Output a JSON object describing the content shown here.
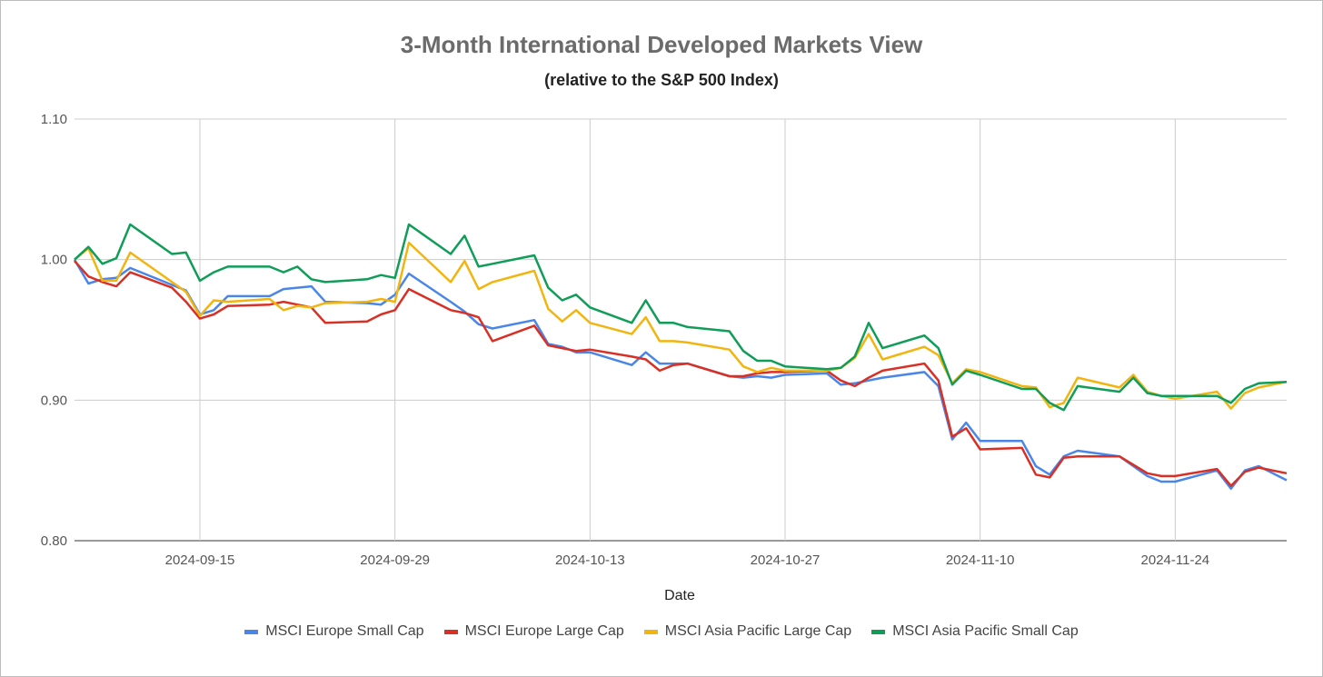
{
  "chart_data": {
    "type": "line",
    "title": "3-Month International Developed Markets View",
    "subtitle": "(relative to the S&P 500 Index)",
    "xlabel": "Date",
    "ylabel": "",
    "ylim": [
      0.8,
      1.1
    ],
    "y_ticks": [
      "0.80",
      "0.90",
      "1.00",
      "1.10"
    ],
    "x_range": [
      "2024-09-06",
      "2024-12-02"
    ],
    "x_ticks": [
      "2024-09-15",
      "2024-09-29",
      "2024-10-13",
      "2024-10-27",
      "2024-11-10",
      "2024-11-24"
    ],
    "grid": true,
    "legend_position": "bottom",
    "series": [
      {
        "name": "MSCI Europe Small Cap",
        "color": "#4a86e8",
        "points": [
          [
            "2024-09-06",
            1.0
          ],
          [
            "2024-09-07",
            0.983
          ],
          [
            "2024-09-08",
            0.986
          ],
          [
            "2024-09-09",
            0.987
          ],
          [
            "2024-09-10",
            0.994
          ],
          [
            "2024-09-13",
            0.982
          ],
          [
            "2024-09-14",
            0.978
          ],
          [
            "2024-09-15",
            0.961
          ],
          [
            "2024-09-16",
            0.964
          ],
          [
            "2024-09-17",
            0.974
          ],
          [
            "2024-09-20",
            0.974
          ],
          [
            "2024-09-21",
            0.979
          ],
          [
            "2024-09-22",
            0.98
          ],
          [
            "2024-09-23",
            0.981
          ],
          [
            "2024-09-24",
            0.97
          ],
          [
            "2024-09-27",
            0.969
          ],
          [
            "2024-09-28",
            0.968
          ],
          [
            "2024-09-29",
            0.975
          ],
          [
            "2024-09-30",
            0.99
          ],
          [
            "2024-10-03",
            0.97
          ],
          [
            "2024-10-04",
            0.963
          ],
          [
            "2024-10-05",
            0.954
          ],
          [
            "2024-10-06",
            0.951
          ],
          [
            "2024-10-09",
            0.957
          ],
          [
            "2024-10-10",
            0.94
          ],
          [
            "2024-10-11",
            0.938
          ],
          [
            "2024-10-12",
            0.934
          ],
          [
            "2024-10-13",
            0.934
          ],
          [
            "2024-10-16",
            0.925
          ],
          [
            "2024-10-17",
            0.934
          ],
          [
            "2024-10-18",
            0.926
          ],
          [
            "2024-10-19",
            0.926
          ],
          [
            "2024-10-20",
            0.926
          ],
          [
            "2024-10-23",
            0.917
          ],
          [
            "2024-10-24",
            0.916
          ],
          [
            "2024-10-25",
            0.917
          ],
          [
            "2024-10-26",
            0.916
          ],
          [
            "2024-10-27",
            0.918
          ],
          [
            "2024-10-30",
            0.919
          ],
          [
            "2024-10-31",
            0.911
          ],
          [
            "2024-11-01",
            0.912
          ],
          [
            "2024-11-02",
            0.914
          ],
          [
            "2024-11-03",
            0.916
          ],
          [
            "2024-11-06",
            0.92
          ],
          [
            "2024-11-07",
            0.91
          ],
          [
            "2024-11-08",
            0.872
          ],
          [
            "2024-11-09",
            0.884
          ],
          [
            "2024-11-10",
            0.871
          ],
          [
            "2024-11-13",
            0.871
          ],
          [
            "2024-11-14",
            0.853
          ],
          [
            "2024-11-15",
            0.847
          ],
          [
            "2024-11-16",
            0.86
          ],
          [
            "2024-11-17",
            0.864
          ],
          [
            "2024-11-20",
            0.86
          ],
          [
            "2024-11-21",
            0.853
          ],
          [
            "2024-11-22",
            0.846
          ],
          [
            "2024-11-23",
            0.842
          ],
          [
            "2024-11-24",
            0.842
          ],
          [
            "2024-11-27",
            0.85
          ],
          [
            "2024-11-28",
            0.837
          ],
          [
            "2024-11-29",
            0.85
          ],
          [
            "2024-11-30",
            0.853
          ],
          [
            "2024-12-02",
            0.843
          ]
        ]
      },
      {
        "name": "MSCI Europe Large Cap",
        "color": "#d93025",
        "points": [
          [
            "2024-09-06",
            0.999
          ],
          [
            "2024-09-07",
            0.988
          ],
          [
            "2024-09-08",
            0.984
          ],
          [
            "2024-09-09",
            0.981
          ],
          [
            "2024-09-10",
            0.991
          ],
          [
            "2024-09-13",
            0.98
          ],
          [
            "2024-09-14",
            0.97
          ],
          [
            "2024-09-15",
            0.958
          ],
          [
            "2024-09-16",
            0.961
          ],
          [
            "2024-09-17",
            0.967
          ],
          [
            "2024-09-20",
            0.968
          ],
          [
            "2024-09-21",
            0.97
          ],
          [
            "2024-09-22",
            0.968
          ],
          [
            "2024-09-23",
            0.966
          ],
          [
            "2024-09-24",
            0.955
          ],
          [
            "2024-09-27",
            0.956
          ],
          [
            "2024-09-28",
            0.961
          ],
          [
            "2024-09-29",
            0.964
          ],
          [
            "2024-09-30",
            0.979
          ],
          [
            "2024-10-03",
            0.964
          ],
          [
            "2024-10-04",
            0.962
          ],
          [
            "2024-10-05",
            0.959
          ],
          [
            "2024-10-06",
            0.942
          ],
          [
            "2024-10-09",
            0.953
          ],
          [
            "2024-10-10",
            0.939
          ],
          [
            "2024-10-11",
            0.937
          ],
          [
            "2024-10-12",
            0.935
          ],
          [
            "2024-10-13",
            0.936
          ],
          [
            "2024-10-16",
            0.931
          ],
          [
            "2024-10-17",
            0.929
          ],
          [
            "2024-10-18",
            0.921
          ],
          [
            "2024-10-19",
            0.925
          ],
          [
            "2024-10-20",
            0.926
          ],
          [
            "2024-10-23",
            0.917
          ],
          [
            "2024-10-24",
            0.917
          ],
          [
            "2024-10-25",
            0.919
          ],
          [
            "2024-10-26",
            0.92
          ],
          [
            "2024-10-27",
            0.92
          ],
          [
            "2024-10-30",
            0.921
          ],
          [
            "2024-10-31",
            0.914
          ],
          [
            "2024-11-01",
            0.91
          ],
          [
            "2024-11-02",
            0.916
          ],
          [
            "2024-11-03",
            0.921
          ],
          [
            "2024-11-06",
            0.926
          ],
          [
            "2024-11-07",
            0.914
          ],
          [
            "2024-11-08",
            0.874
          ],
          [
            "2024-11-09",
            0.88
          ],
          [
            "2024-11-10",
            0.865
          ],
          [
            "2024-11-13",
            0.866
          ],
          [
            "2024-11-14",
            0.847
          ],
          [
            "2024-11-15",
            0.845
          ],
          [
            "2024-11-16",
            0.859
          ],
          [
            "2024-11-17",
            0.86
          ],
          [
            "2024-11-20",
            0.86
          ],
          [
            "2024-11-21",
            0.854
          ],
          [
            "2024-11-22",
            0.848
          ],
          [
            "2024-11-23",
            0.846
          ],
          [
            "2024-11-24",
            0.846
          ],
          [
            "2024-11-27",
            0.851
          ],
          [
            "2024-11-28",
            0.839
          ],
          [
            "2024-11-29",
            0.849
          ],
          [
            "2024-11-30",
            0.852
          ],
          [
            "2024-12-02",
            0.848
          ]
        ]
      },
      {
        "name": "MSCI Asia Pacific Large Cap",
        "color": "#f2b50f",
        "points": [
          [
            "2024-09-06",
            1.0
          ],
          [
            "2024-09-07",
            1.008
          ],
          [
            "2024-09-08",
            0.985
          ],
          [
            "2024-09-09",
            0.985
          ],
          [
            "2024-09-10",
            1.005
          ],
          [
            "2024-09-13",
            0.984
          ],
          [
            "2024-09-14",
            0.977
          ],
          [
            "2024-09-15",
            0.96
          ],
          [
            "2024-09-16",
            0.971
          ],
          [
            "2024-09-17",
            0.97
          ],
          [
            "2024-09-20",
            0.972
          ],
          [
            "2024-09-21",
            0.964
          ],
          [
            "2024-09-22",
            0.967
          ],
          [
            "2024-09-23",
            0.966
          ],
          [
            "2024-09-24",
            0.969
          ],
          [
            "2024-09-27",
            0.97
          ],
          [
            "2024-09-28",
            0.972
          ],
          [
            "2024-09-29",
            0.97
          ],
          [
            "2024-09-30",
            1.012
          ],
          [
            "2024-10-03",
            0.984
          ],
          [
            "2024-10-04",
            0.999
          ],
          [
            "2024-10-05",
            0.979
          ],
          [
            "2024-10-06",
            0.984
          ],
          [
            "2024-10-09",
            0.992
          ],
          [
            "2024-10-10",
            0.965
          ],
          [
            "2024-10-11",
            0.956
          ],
          [
            "2024-10-12",
            0.964
          ],
          [
            "2024-10-13",
            0.955
          ],
          [
            "2024-10-16",
            0.947
          ],
          [
            "2024-10-17",
            0.959
          ],
          [
            "2024-10-18",
            0.942
          ],
          [
            "2024-10-19",
            0.942
          ],
          [
            "2024-10-20",
            0.941
          ],
          [
            "2024-10-23",
            0.936
          ],
          [
            "2024-10-24",
            0.924
          ],
          [
            "2024-10-25",
            0.92
          ],
          [
            "2024-10-26",
            0.923
          ],
          [
            "2024-10-27",
            0.921
          ],
          [
            "2024-10-30",
            0.921
          ],
          [
            "2024-10-31",
            0.923
          ],
          [
            "2024-11-01",
            0.93
          ],
          [
            "2024-11-02",
            0.947
          ],
          [
            "2024-11-03",
            0.929
          ],
          [
            "2024-11-06",
            0.938
          ],
          [
            "2024-11-07",
            0.932
          ],
          [
            "2024-11-08",
            0.912
          ],
          [
            "2024-11-09",
            0.922
          ],
          [
            "2024-11-10",
            0.92
          ],
          [
            "2024-11-13",
            0.91
          ],
          [
            "2024-11-14",
            0.909
          ],
          [
            "2024-11-15",
            0.895
          ],
          [
            "2024-11-16",
            0.898
          ],
          [
            "2024-11-17",
            0.916
          ],
          [
            "2024-11-20",
            0.909
          ],
          [
            "2024-11-21",
            0.918
          ],
          [
            "2024-11-22",
            0.906
          ],
          [
            "2024-11-23",
            0.903
          ],
          [
            "2024-11-24",
            0.901
          ],
          [
            "2024-11-27",
            0.906
          ],
          [
            "2024-11-28",
            0.894
          ],
          [
            "2024-11-29",
            0.905
          ],
          [
            "2024-11-30",
            0.909
          ],
          [
            "2024-12-02",
            0.913
          ]
        ]
      },
      {
        "name": "MSCI Asia Pacific Small Cap",
        "color": "#0f9d58",
        "points": [
          [
            "2024-09-06",
            1.0
          ],
          [
            "2024-09-07",
            1.009
          ],
          [
            "2024-09-08",
            0.997
          ],
          [
            "2024-09-09",
            1.001
          ],
          [
            "2024-09-10",
            1.025
          ],
          [
            "2024-09-13",
            1.004
          ],
          [
            "2024-09-14",
            1.005
          ],
          [
            "2024-09-15",
            0.985
          ],
          [
            "2024-09-16",
            0.991
          ],
          [
            "2024-09-17",
            0.995
          ],
          [
            "2024-09-20",
            0.995
          ],
          [
            "2024-09-21",
            0.991
          ],
          [
            "2024-09-22",
            0.995
          ],
          [
            "2024-09-23",
            0.986
          ],
          [
            "2024-09-24",
            0.984
          ],
          [
            "2024-09-27",
            0.986
          ],
          [
            "2024-09-28",
            0.989
          ],
          [
            "2024-09-29",
            0.987
          ],
          [
            "2024-09-30",
            1.025
          ],
          [
            "2024-10-03",
            1.004
          ],
          [
            "2024-10-04",
            1.017
          ],
          [
            "2024-10-05",
            0.995
          ],
          [
            "2024-10-06",
            0.997
          ],
          [
            "2024-10-09",
            1.003
          ],
          [
            "2024-10-10",
            0.98
          ],
          [
            "2024-10-11",
            0.971
          ],
          [
            "2024-10-12",
            0.975
          ],
          [
            "2024-10-13",
            0.966
          ],
          [
            "2024-10-16",
            0.955
          ],
          [
            "2024-10-17",
            0.971
          ],
          [
            "2024-10-18",
            0.955
          ],
          [
            "2024-10-19",
            0.955
          ],
          [
            "2024-10-20",
            0.952
          ],
          [
            "2024-10-23",
            0.949
          ],
          [
            "2024-10-24",
            0.935
          ],
          [
            "2024-10-25",
            0.928
          ],
          [
            "2024-10-26",
            0.928
          ],
          [
            "2024-10-27",
            0.924
          ],
          [
            "2024-10-30",
            0.922
          ],
          [
            "2024-10-31",
            0.923
          ],
          [
            "2024-11-01",
            0.931
          ],
          [
            "2024-11-02",
            0.955
          ],
          [
            "2024-11-03",
            0.937
          ],
          [
            "2024-11-06",
            0.946
          ],
          [
            "2024-11-07",
            0.937
          ],
          [
            "2024-11-08",
            0.911
          ],
          [
            "2024-11-09",
            0.921
          ],
          [
            "2024-11-10",
            0.918
          ],
          [
            "2024-11-13",
            0.908
          ],
          [
            "2024-11-14",
            0.908
          ],
          [
            "2024-11-15",
            0.898
          ],
          [
            "2024-11-16",
            0.893
          ],
          [
            "2024-11-17",
            0.91
          ],
          [
            "2024-11-20",
            0.906
          ],
          [
            "2024-11-21",
            0.916
          ],
          [
            "2024-11-22",
            0.905
          ],
          [
            "2024-11-23",
            0.903
          ],
          [
            "2024-11-24",
            0.903
          ],
          [
            "2024-11-27",
            0.903
          ],
          [
            "2024-11-28",
            0.898
          ],
          [
            "2024-11-29",
            0.908
          ],
          [
            "2024-11-30",
            0.912
          ],
          [
            "2024-12-02",
            0.913
          ]
        ]
      }
    ]
  }
}
